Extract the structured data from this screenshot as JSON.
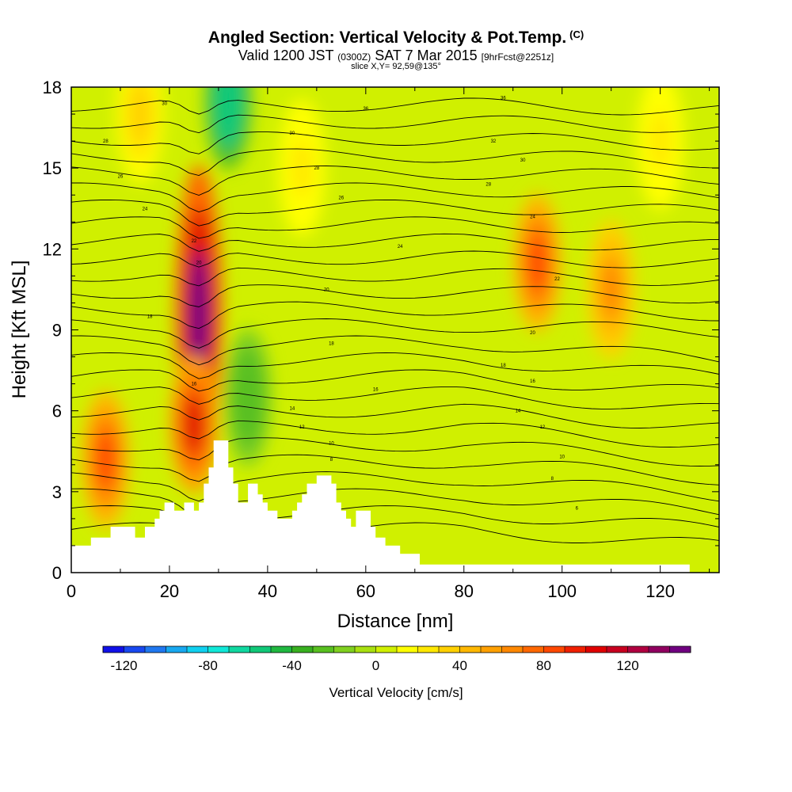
{
  "title": {
    "main": "Angled Section: Vertical Velocity & Pot.Temp.",
    "unit": "(C)",
    "valid_prefix": "Valid 1200 JST",
    "valid_z": "(0300Z)",
    "valid_date": "SAT 7 Mar 2015",
    "valid_fcst": "[9hrFcst@2251z]",
    "slice": "slice X,Y= 92,59@135°"
  },
  "chart_data": {
    "type": "heatmap",
    "title": "Angled Section: Vertical Velocity & Pot.Temp. (C)",
    "xlabel": "Distance [nm]",
    "ylabel": "Height [Kft MSL]",
    "xlim": [
      0,
      132
    ],
    "ylim": [
      0,
      18
    ],
    "x_ticks": [
      "0",
      "20",
      "40",
      "60",
      "80",
      "100",
      "120"
    ],
    "y_ticks": [
      "0",
      "3",
      "6",
      "9",
      "12",
      "15",
      "18"
    ],
    "colorbar": {
      "label": "Vertical Velocity [cm/s]",
      "ticks": [
        "-120",
        "-80",
        "-40",
        "0",
        "40",
        "80",
        "120"
      ],
      "range": [
        -130,
        150
      ],
      "step": 10,
      "colors": [
        "#1010e8",
        "#1848f0",
        "#2078f0",
        "#18a8f0",
        "#10d0f0",
        "#10e8d8",
        "#10d8a0",
        "#10c878",
        "#20b840",
        "#38b020",
        "#58c020",
        "#80d020",
        "#a8e010",
        "#d0f000",
        "#ffff00",
        "#ffe800",
        "#ffd000",
        "#ffb800",
        "#ffa000",
        "#ff8800",
        "#ff6800",
        "#ff4800",
        "#f02000",
        "#e00000",
        "#c80020",
        "#b00040",
        "#900060",
        "#700080"
      ]
    },
    "features": [
      {
        "x": 7,
        "y": 4.2,
        "value": 85
      },
      {
        "x": 26,
        "y": 9.5,
        "value": 145
      },
      {
        "x": 25,
        "y": 5.5,
        "value": 100
      },
      {
        "x": 32,
        "y": 17.5,
        "value": -60
      },
      {
        "x": 36,
        "y": 6.5,
        "value": -30
      },
      {
        "x": 95,
        "y": 11.5,
        "value": 80
      },
      {
        "x": 110,
        "y": 10.5,
        "value": 60
      },
      {
        "x": 47,
        "y": 15,
        "value": 20
      },
      {
        "x": 14,
        "y": 17,
        "value": 30
      },
      {
        "x": 120,
        "y": 16,
        "value": 20
      }
    ],
    "isentrope_labels": [
      {
        "x": 19,
        "y": 17.4,
        "text": "30"
      },
      {
        "x": 7,
        "y": 16.0,
        "text": "28"
      },
      {
        "x": 10,
        "y": 14.7,
        "text": "26"
      },
      {
        "x": 15,
        "y": 13.5,
        "text": "24"
      },
      {
        "x": 25,
        "y": 12.3,
        "text": "22"
      },
      {
        "x": 26,
        "y": 11.5,
        "text": "20"
      },
      {
        "x": 16,
        "y": 9.5,
        "text": "18"
      },
      {
        "x": 25,
        "y": 7.0,
        "text": "16"
      },
      {
        "x": 45,
        "y": 6.1,
        "text": "14"
      },
      {
        "x": 47,
        "y": 5.4,
        "text": "12"
      },
      {
        "x": 53,
        "y": 4.8,
        "text": "10"
      },
      {
        "x": 53,
        "y": 4.2,
        "text": "8"
      },
      {
        "x": 60,
        "y": 17.2,
        "text": "36"
      },
      {
        "x": 45,
        "y": 16.3,
        "text": "30"
      },
      {
        "x": 50,
        "y": 15.0,
        "text": "28"
      },
      {
        "x": 55,
        "y": 13.9,
        "text": "26"
      },
      {
        "x": 67,
        "y": 12.1,
        "text": "24"
      },
      {
        "x": 52,
        "y": 10.5,
        "text": "20"
      },
      {
        "x": 53,
        "y": 8.5,
        "text": "18"
      },
      {
        "x": 62,
        "y": 6.8,
        "text": "16"
      },
      {
        "x": 88,
        "y": 17.6,
        "text": "36"
      },
      {
        "x": 86,
        "y": 16.0,
        "text": "32"
      },
      {
        "x": 92,
        "y": 15.3,
        "text": "30"
      },
      {
        "x": 85,
        "y": 14.4,
        "text": "28"
      },
      {
        "x": 94,
        "y": 13.2,
        "text": "24"
      },
      {
        "x": 99,
        "y": 10.9,
        "text": "22"
      },
      {
        "x": 94,
        "y": 8.9,
        "text": "20"
      },
      {
        "x": 88,
        "y": 7.7,
        "text": "18"
      },
      {
        "x": 94,
        "y": 7.1,
        "text": "16"
      },
      {
        "x": 91,
        "y": 6.0,
        "text": "14"
      },
      {
        "x": 96,
        "y": 5.4,
        "text": "12"
      },
      {
        "x": 100,
        "y": 4.3,
        "text": "10"
      },
      {
        "x": 98,
        "y": 3.5,
        "text": "8"
      },
      {
        "x": 103,
        "y": 2.4,
        "text": "6"
      }
    ],
    "terrain": [
      [
        0,
        1.0
      ],
      [
        4,
        1.0
      ],
      [
        4,
        1.3
      ],
      [
        8,
        1.3
      ],
      [
        8,
        1.7
      ],
      [
        13,
        1.7
      ],
      [
        13,
        1.3
      ],
      [
        15,
        1.3
      ],
      [
        15,
        1.7
      ],
      [
        17,
        1.7
      ],
      [
        17,
        2.0
      ],
      [
        18,
        2.0
      ],
      [
        18,
        2.3
      ],
      [
        19,
        2.3
      ],
      [
        19,
        2.6
      ],
      [
        21,
        2.6
      ],
      [
        21,
        2.3
      ],
      [
        23,
        2.3
      ],
      [
        23,
        2.6
      ],
      [
        25,
        2.6
      ],
      [
        25,
        2.3
      ],
      [
        26,
        2.3
      ],
      [
        26,
        2.6
      ],
      [
        27,
        2.6
      ],
      [
        27,
        3.3
      ],
      [
        28,
        3.3
      ],
      [
        28,
        3.9
      ],
      [
        29,
        3.9
      ],
      [
        29,
        4.9
      ],
      [
        32,
        4.9
      ],
      [
        32,
        3.9
      ],
      [
        33,
        3.9
      ],
      [
        33,
        3.3
      ],
      [
        34,
        3.3
      ],
      [
        34,
        2.6
      ],
      [
        36,
        2.6
      ],
      [
        36,
        3.3
      ],
      [
        38,
        3.3
      ],
      [
        38,
        2.9
      ],
      [
        39,
        2.9
      ],
      [
        39,
        2.6
      ],
      [
        40,
        2.6
      ],
      [
        40,
        2.3
      ],
      [
        42,
        2.3
      ],
      [
        42,
        2.0
      ],
      [
        45,
        2.0
      ],
      [
        45,
        2.3
      ],
      [
        46,
        2.3
      ],
      [
        46,
        2.6
      ],
      [
        47,
        2.6
      ],
      [
        47,
        2.9
      ],
      [
        48,
        2.9
      ],
      [
        48,
        3.3
      ],
      [
        50,
        3.3
      ],
      [
        50,
        3.6
      ],
      [
        53,
        3.6
      ],
      [
        53,
        3.3
      ],
      [
        54,
        3.3
      ],
      [
        54,
        2.6
      ],
      [
        55,
        2.6
      ],
      [
        55,
        2.3
      ],
      [
        56,
        2.3
      ],
      [
        56,
        2.0
      ],
      [
        57,
        2.0
      ],
      [
        57,
        1.7
      ],
      [
        58,
        1.7
      ],
      [
        58,
        2.3
      ],
      [
        61,
        2.3
      ],
      [
        61,
        1.7
      ],
      [
        62,
        1.7
      ],
      [
        62,
        1.3
      ],
      [
        64,
        1.3
      ],
      [
        64,
        1.0
      ],
      [
        67,
        1.0
      ],
      [
        67,
        0.7
      ],
      [
        71,
        0.7
      ],
      [
        71,
        0.3
      ],
      [
        126,
        0.3
      ],
      [
        126,
        0.0
      ],
      [
        0,
        0.0
      ]
    ]
  }
}
